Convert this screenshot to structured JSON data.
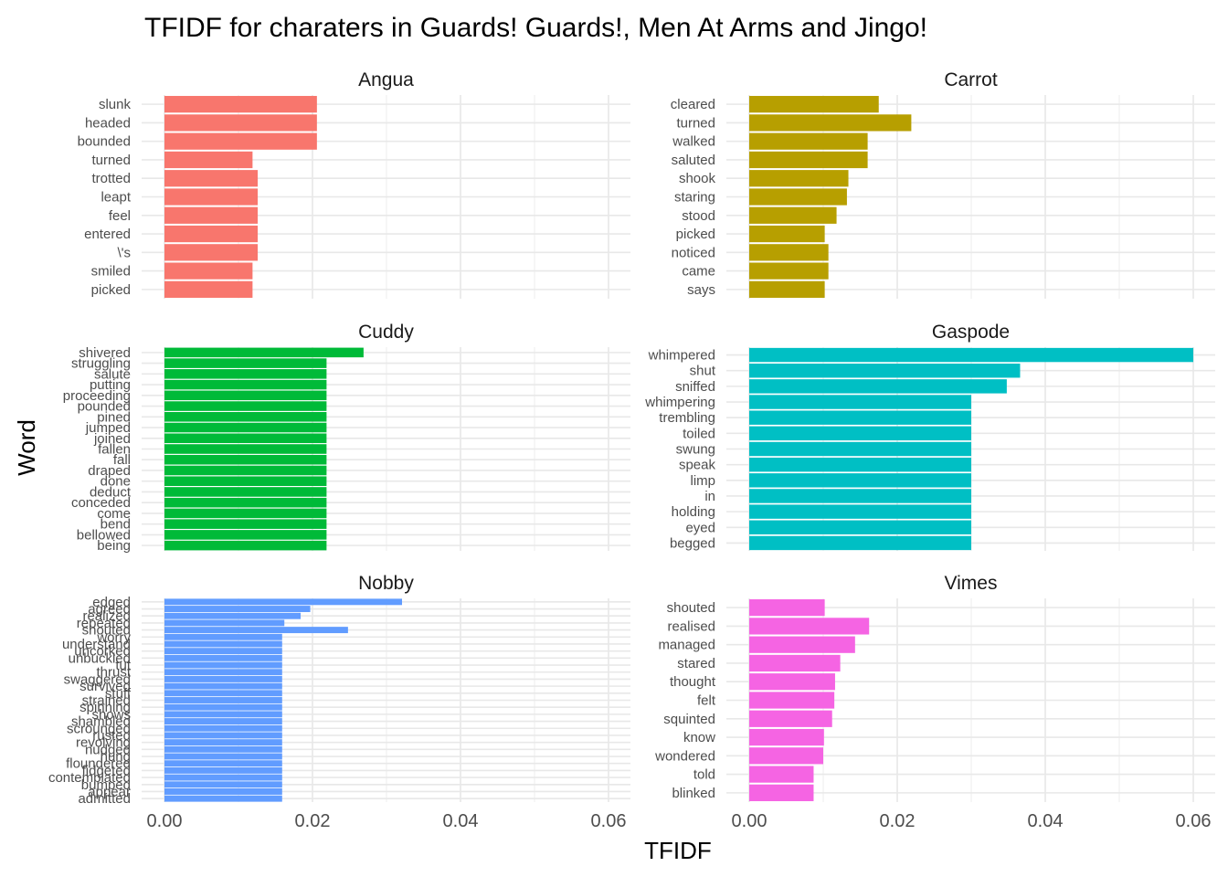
{
  "chart_data": {
    "type": "bar",
    "orientation": "horizontal",
    "title": "TFIDF for charaters in Guards! Guards!, Men At Arms and Jingo!",
    "xlabel": "TFIDF",
    "ylabel": "Word",
    "xlim": [
      0,
      0.063
    ],
    "xticks": [
      "0.00",
      "0.02",
      "0.04",
      "0.06"
    ],
    "xtick_values": [
      0,
      0.02,
      0.04,
      0.06
    ],
    "grid": true,
    "legend": "none",
    "panels": [
      {
        "name": "Angua",
        "color": "#F8766D",
        "words": [
          "slunk",
          "headed",
          "bounded",
          "turned",
          "trotted",
          "leapt",
          "feel",
          "entered",
          "\\'s",
          "smiled",
          "picked"
        ],
        "values": [
          0.0206,
          0.0206,
          0.0206,
          0.0119,
          0.0126,
          0.0126,
          0.0126,
          0.0126,
          0.0126,
          0.0119,
          0.0119
        ]
      },
      {
        "name": "Carrot",
        "color": "#B79F00",
        "words": [
          "cleared",
          "turned",
          "walked",
          "saluted",
          "shook",
          "staring",
          "stood",
          "picked",
          "noticed",
          "came",
          "says"
        ],
        "values": [
          0.0175,
          0.0219,
          0.016,
          0.016,
          0.0134,
          0.0132,
          0.0118,
          0.0102,
          0.0107,
          0.0107,
          0.0102
        ]
      },
      {
        "name": "Cuddy",
        "color": "#00BA38",
        "words": [
          "shivered",
          "struggling",
          "salute",
          "putting",
          "proceeding",
          "pounded",
          "pined",
          "jumped",
          "joined",
          "fallen",
          "fall",
          "draped",
          "done",
          "deduct",
          "conceded",
          "come",
          "bend",
          "bellowed",
          "being"
        ],
        "values": [
          0.0269,
          0.0219,
          0.0219,
          0.0219,
          0.0219,
          0.0219,
          0.0219,
          0.0219,
          0.0219,
          0.0219,
          0.0219,
          0.0219,
          0.0219,
          0.0219,
          0.0219,
          0.0219,
          0.0219,
          0.0219,
          0.0219
        ]
      },
      {
        "name": "Gaspode",
        "color": "#00BFC4",
        "words": [
          "whimpered",
          "shut",
          "sniffed",
          "whimpering",
          "trembling",
          "toiled",
          "swung",
          "speak",
          "limp",
          "in",
          "holding",
          "eyed",
          "begged"
        ],
        "values": [
          0.06,
          0.0366,
          0.0348,
          0.03,
          0.03,
          0.03,
          0.03,
          0.03,
          0.03,
          0.03,
          0.03,
          0.03,
          0.03
        ]
      },
      {
        "name": "Nobby",
        "color": "#619CFF",
        "words": [
          "edged",
          "agreed",
          "realized",
          "repeated",
          "shouted",
          "worry",
          "understand",
          "uncorked",
          "unbuckled",
          "tut",
          "thrust",
          "swaggered",
          "survived",
          "stuff",
          "strained",
          "spinning",
          "shows",
          "shambled",
          "scrounged",
          "rusted",
          "revolving",
          "nudged",
          "hung",
          "floundered",
          "fidgeted",
          "contemplated",
          "bumped",
          "appear",
          "admitted"
        ],
        "values": [
          0.0321,
          0.0197,
          0.0184,
          0.0162,
          0.0248,
          0.0159,
          0.0159,
          0.0159,
          0.0159,
          0.0159,
          0.0159,
          0.0159,
          0.0159,
          0.0159,
          0.0159,
          0.0159,
          0.0159,
          0.0159,
          0.0159,
          0.0159,
          0.0159,
          0.0159,
          0.0159,
          0.0159,
          0.0159,
          0.0159,
          0.0159,
          0.0159,
          0.0159
        ]
      },
      {
        "name": "Vimes",
        "color": "#F564E3",
        "words": [
          "shouted",
          "realised",
          "managed",
          "stared",
          "thought",
          "felt",
          "squinted",
          "know",
          "wondered",
          "told",
          "blinked"
        ],
        "values": [
          0.0102,
          0.0162,
          0.0143,
          0.0123,
          0.0116,
          0.0115,
          0.0112,
          0.0101,
          0.01,
          0.0087,
          0.0087
        ]
      }
    ]
  }
}
